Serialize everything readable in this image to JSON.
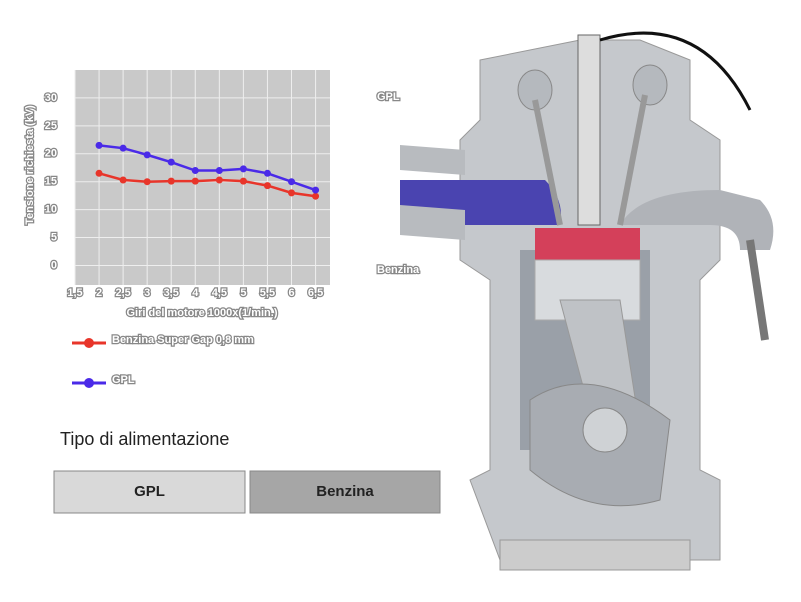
{
  "chart_data": {
    "type": "line",
    "y_label": "Tensione richiesta (kV)",
    "x_label": "Giri del motore 1000x(1/min.)",
    "x": [
      2,
      2.5,
      3,
      3.5,
      4,
      4.5,
      5,
      5.5,
      6,
      6.5
    ],
    "series": [
      {
        "name": "Benzina Super Gap 0,8 mm",
        "color": "#e8352a",
        "values": [
          16.5,
          15.3,
          15,
          15.1,
          15.1,
          15.3,
          15.1,
          14.3,
          13,
          12.4
        ]
      },
      {
        "name": "GPL",
        "color": "#4a2ae8",
        "values": [
          21.5,
          21,
          19.8,
          18.5,
          17,
          17,
          17.3,
          16.5,
          15,
          13.5
        ]
      }
    ],
    "xlim": [
      1.5,
      6.8
    ],
    "ylim": [
      -3.5,
      35
    ],
    "xticks": [
      {
        "value": 1.5,
        "label": "1,5"
      },
      2,
      {
        "value": 2.5,
        "label": "2,5"
      },
      3,
      {
        "value": 3.5,
        "label": "3,5"
      },
      4,
      {
        "value": 4.5,
        "label": "4,5"
      },
      5,
      {
        "value": 5.5,
        "label": "5,5"
      },
      6,
      {
        "value": 6.5,
        "label": "6,5"
      }
    ],
    "yticks": [
      0,
      5,
      10,
      15,
      20,
      25,
      30
    ],
    "grid": true
  },
  "engine_labels": [
    "GPL",
    "Benzina"
  ],
  "section_title": "Tipo di alimentazione",
  "buttons": [
    "GPL",
    "Benzina"
  ]
}
